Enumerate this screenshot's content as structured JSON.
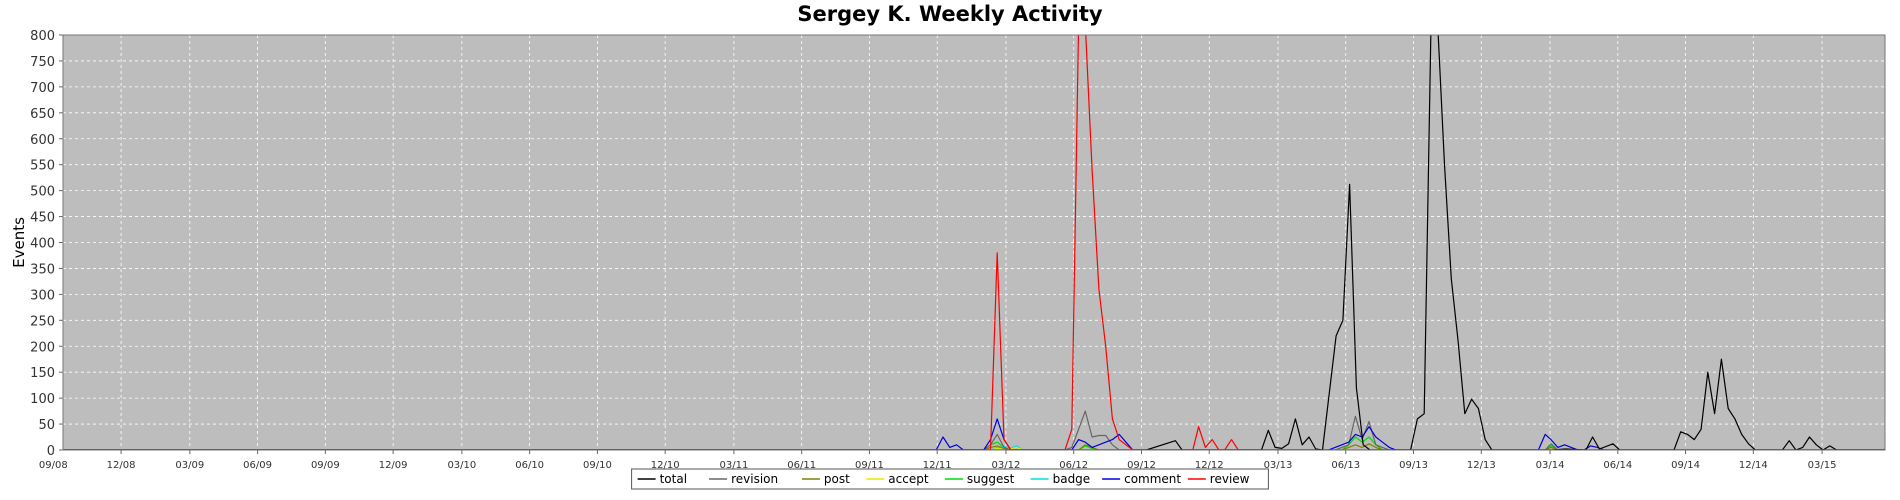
{
  "chart_data": {
    "type": "line",
    "title": "Sergey K. Weekly Activity",
    "xlabel": "",
    "ylabel": "Events",
    "ylim": [
      0,
      800
    ],
    "yticks": [
      0,
      50,
      100,
      150,
      200,
      250,
      300,
      350,
      400,
      450,
      500,
      550,
      600,
      650,
      700,
      750,
      800
    ],
    "xticks": [
      "09/08",
      "12/08",
      "03/09",
      "06/09",
      "09/09",
      "12/09",
      "03/10",
      "06/10",
      "09/10",
      "12/10",
      "03/11",
      "06/11",
      "09/11",
      "12/11",
      "03/12",
      "06/12",
      "09/12",
      "12/12",
      "03/13",
      "06/13",
      "09/13",
      "12/13",
      "03/14",
      "06/14",
      "09/14",
      "12/14",
      "03/15"
    ],
    "grid": true,
    "legend_position": "bottom",
    "series": [
      {
        "name": "total",
        "color": "#000000",
        "points": [
          [
            "11/12",
            0
          ],
          [
            "12/12",
            18
          ],
          [
            "12/19",
            0
          ],
          [
            "03/12",
            0
          ],
          [
            "03/19",
            38
          ],
          [
            "03/26",
            5
          ],
          [
            "04/02",
            3
          ],
          [
            "04/09",
            12
          ],
          [
            "04/16",
            60
          ],
          [
            "04/23",
            10
          ],
          [
            "04/30",
            25
          ],
          [
            "05/07",
            2
          ],
          [
            "05/14",
            0
          ],
          [
            "05/28",
            220
          ],
          [
            "06/04",
            250
          ],
          [
            "06/11",
            512
          ],
          [
            "06/18",
            120
          ],
          [
            "06/25",
            10
          ],
          [
            "07/02",
            0
          ],
          [
            "08/13",
            0
          ],
          [
            "08/20",
            60
          ],
          [
            "08/27",
            70
          ],
          [
            "09/03",
            820
          ],
          [
            "09/10",
            820
          ],
          [
            "09/17",
            550
          ],
          [
            "09/24",
            330
          ],
          [
            "10/01",
            210
          ],
          [
            "10/08",
            70
          ],
          [
            "10/15",
            98
          ],
          [
            "10/22",
            80
          ],
          [
            "10/29",
            20
          ],
          [
            "11/05",
            0
          ],
          [
            "01/07",
            0
          ],
          [
            "01/21",
            2
          ],
          [
            "02/11",
            0
          ],
          [
            "02/18",
            25
          ],
          [
            "02/25",
            2
          ],
          [
            "03/11",
            12
          ],
          [
            "03/18",
            0
          ],
          [
            "05/13",
            0
          ],
          [
            "05/20",
            35
          ],
          [
            "05/27",
            30
          ],
          [
            "06/03",
            20
          ],
          [
            "06/10",
            40
          ],
          [
            "06/17",
            150
          ],
          [
            "06/24",
            70
          ],
          [
            "07/01",
            175
          ],
          [
            "07/08",
            80
          ],
          [
            "07/15",
            60
          ],
          [
            "07/22",
            30
          ],
          [
            "07/29",
            12
          ],
          [
            "08/05",
            0
          ],
          [
            "09/02",
            0
          ],
          [
            "09/09",
            18
          ],
          [
            "09/16",
            0
          ],
          [
            "09/23",
            5
          ],
          [
            "09/30",
            25
          ],
          [
            "10/07",
            10
          ],
          [
            "10/14",
            0
          ],
          [
            "10/21",
            8
          ],
          [
            "10/28",
            0
          ],
          [
            "12/16",
            0
          ],
          [
            "12/23",
            12
          ],
          [
            "12/30",
            95
          ],
          [
            "01/06",
            85
          ],
          [
            "01/13",
            10
          ],
          [
            "01/20",
            28
          ],
          [
            "01/27",
            28
          ],
          [
            "02/03",
            10
          ],
          [
            "02/10",
            5
          ],
          [
            "02/17",
            0
          ],
          [
            "02/24",
            28
          ],
          [
            "03/03",
            25
          ],
          [
            "03/10",
            5
          ],
          [
            "03/17",
            12
          ],
          [
            "03/24",
            0
          ],
          [
            "05/12",
            0
          ],
          [
            "05/19",
            5
          ],
          [
            "05/26",
            0
          ],
          [
            "08/04",
            0
          ],
          [
            "08/11",
            5
          ],
          [
            "08/18",
            3
          ],
          [
            "08/25",
            0
          ],
          [
            "09/08",
            10
          ],
          [
            "09/15",
            5
          ],
          [
            "09/22",
            0
          ],
          [
            "12/01",
            0
          ],
          [
            "12/08",
            5
          ],
          [
            "12/15",
            0
          ],
          [
            "01/26",
            0
          ],
          [
            "02/02",
            5
          ],
          [
            "02/09",
            22
          ],
          [
            "02/16",
            3
          ],
          [
            "02/23",
            8
          ],
          [
            "03/02",
            12
          ],
          [
            "03/09",
            0
          ]
        ]
      },
      {
        "name": "revision",
        "color": "#666666",
        "points": [
          [
            "05/28",
            0
          ],
          [
            "06/04",
            10
          ],
          [
            "06/11",
            30
          ],
          [
            "06/18",
            5
          ],
          [
            "06/25",
            0
          ],
          [
            "08/20",
            0
          ],
          [
            "08/27",
            5
          ],
          [
            "09/03",
            40
          ],
          [
            "09/10",
            75
          ],
          [
            "09/17",
            25
          ],
          [
            "09/24",
            28
          ],
          [
            "10/01",
            28
          ],
          [
            "10/08",
            10
          ],
          [
            "10/15",
            0
          ],
          [
            "05/27",
            0
          ],
          [
            "06/03",
            5
          ],
          [
            "06/10",
            10
          ],
          [
            "06/17",
            65
          ],
          [
            "06/24",
            20
          ],
          [
            "07/01",
            55
          ],
          [
            "07/08",
            10
          ],
          [
            "07/15",
            5
          ],
          [
            "07/22",
            0
          ],
          [
            "12/30",
            0
          ],
          [
            "01/06",
            12
          ],
          [
            "01/13",
            0
          ]
        ]
      },
      {
        "name": "post",
        "color": "#808000",
        "points": [
          [
            "05/28",
            0
          ],
          [
            "06/04",
            5
          ],
          [
            "06/11",
            8
          ],
          [
            "06/18",
            3
          ],
          [
            "06/25",
            0
          ],
          [
            "09/03",
            0
          ],
          [
            "09/10",
            10
          ],
          [
            "09/17",
            5
          ],
          [
            "09/24",
            0
          ],
          [
            "06/03",
            0
          ],
          [
            "06/10",
            5
          ],
          [
            "06/17",
            10
          ],
          [
            "06/24",
            5
          ],
          [
            "07/01",
            12
          ],
          [
            "07/08",
            5
          ],
          [
            "07/15",
            0
          ],
          [
            "12/30",
            0
          ],
          [
            "01/06",
            5
          ],
          [
            "01/13",
            0
          ]
        ]
      },
      {
        "name": "accept",
        "color": "#e8e800",
        "points": [
          [
            "06/04",
            0
          ],
          [
            "06/11",
            3
          ],
          [
            "06/18",
            0
          ],
          [
            "06/10",
            0
          ],
          [
            "06/17",
            5
          ],
          [
            "06/24",
            2
          ],
          [
            "07/01",
            5
          ],
          [
            "07/08",
            0
          ]
        ]
      },
      {
        "name": "suggest",
        "color": "#00dd00",
        "points": [
          [
            "05/28",
            0
          ],
          [
            "06/04",
            10
          ],
          [
            "06/11",
            15
          ],
          [
            "06/18",
            5
          ],
          [
            "06/25",
            0
          ],
          [
            "09/03",
            0
          ],
          [
            "09/10",
            8
          ],
          [
            "09/17",
            3
          ],
          [
            "09/24",
            0
          ],
          [
            "06/03",
            0
          ],
          [
            "06/10",
            10
          ],
          [
            "06/17",
            25
          ],
          [
            "06/24",
            15
          ],
          [
            "07/01",
            25
          ],
          [
            "07/08",
            10
          ],
          [
            "07/15",
            0
          ],
          [
            "12/30",
            0
          ],
          [
            "01/06",
            8
          ],
          [
            "01/13",
            0
          ]
        ]
      },
      {
        "name": "badge",
        "color": "#00dddd",
        "points": [
          [
            "06/04",
            0
          ],
          [
            "06/11",
            5
          ],
          [
            "06/18",
            0
          ],
          [
            "06/10",
            0
          ],
          [
            "06/17",
            8
          ],
          [
            "06/24",
            3
          ],
          [
            "07/01",
            8
          ],
          [
            "07/08",
            0
          ]
        ]
      },
      {
        "name": "comment",
        "color": "#0000dd",
        "points": [
          [
            "04/09",
            0
          ],
          [
            "04/16",
            25
          ],
          [
            "04/23",
            5
          ],
          [
            "04/30",
            10
          ],
          [
            "05/07",
            0
          ],
          [
            "05/28",
            0
          ],
          [
            "06/04",
            20
          ],
          [
            "06/11",
            60
          ],
          [
            "06/18",
            20
          ],
          [
            "06/25",
            0
          ],
          [
            "08/27",
            0
          ],
          [
            "09/03",
            20
          ],
          [
            "09/10",
            15
          ],
          [
            "09/17",
            5
          ],
          [
            "10/08",
            20
          ],
          [
            "10/15",
            30
          ],
          [
            "10/22",
            15
          ],
          [
            "10/29",
            0
          ],
          [
            "05/20",
            0
          ],
          [
            "05/27",
            5
          ],
          [
            "06/03",
            10
          ],
          [
            "06/10",
            15
          ],
          [
            "06/17",
            30
          ],
          [
            "06/24",
            25
          ],
          [
            "07/01",
            45
          ],
          [
            "07/08",
            25
          ],
          [
            "07/15",
            15
          ],
          [
            "07/22",
            5
          ],
          [
            "07/29",
            0
          ],
          [
            "12/23",
            0
          ],
          [
            "12/30",
            30
          ],
          [
            "01/06",
            20
          ],
          [
            "01/13",
            5
          ],
          [
            "01/20",
            10
          ],
          [
            "01/27",
            5
          ],
          [
            "02/03",
            0
          ],
          [
            "02/09",
            0
          ],
          [
            "02/16",
            8
          ],
          [
            "02/23",
            5
          ],
          [
            "03/02",
            0
          ]
        ]
      },
      {
        "name": "review",
        "color": "#ff0000",
        "points": [
          [
            "06/04",
            0
          ],
          [
            "06/11",
            380
          ],
          [
            "06/18",
            20
          ],
          [
            "06/25",
            0
          ],
          [
            "08/20",
            0
          ],
          [
            "08/27",
            40
          ],
          [
            "09/03",
            820
          ],
          [
            "09/10",
            820
          ],
          [
            "09/17",
            540
          ],
          [
            "09/24",
            310
          ],
          [
            "10/01",
            200
          ],
          [
            "10/08",
            60
          ],
          [
            "10/15",
            20
          ],
          [
            "10/22",
            10
          ],
          [
            "10/29",
            0
          ],
          [
            "12/30",
            0
          ],
          [
            "01/06",
            45
          ],
          [
            "01/13",
            5
          ],
          [
            "01/20",
            20
          ],
          [
            "01/27",
            0
          ],
          [
            "02/02",
            0
          ],
          [
            "02/09",
            20
          ],
          [
            "02/16",
            0
          ]
        ]
      }
    ]
  }
}
